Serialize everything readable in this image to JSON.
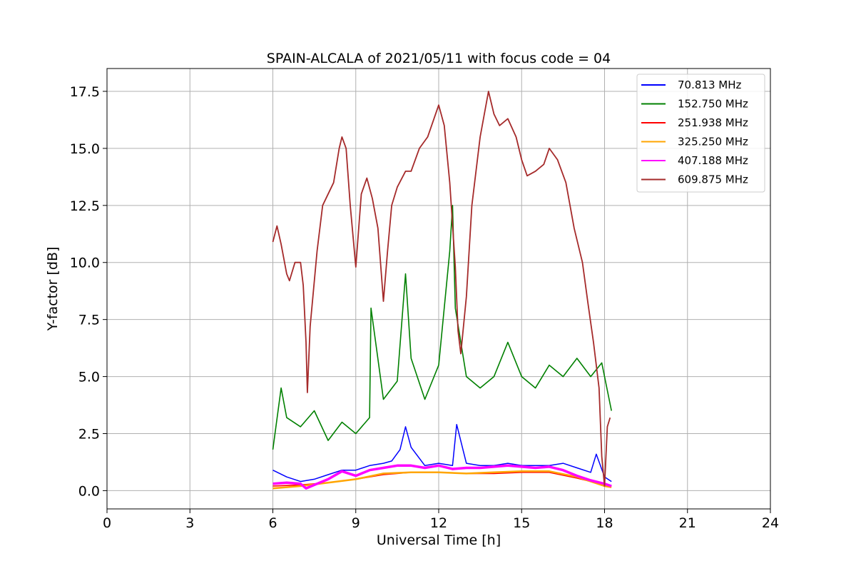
{
  "chart_data": {
    "type": "line",
    "title": "SPAIN-ALCALA of 2021/05/11 with focus code = 04",
    "xlabel": "Universal Time [h]",
    "ylabel": "Y-factor [dB]",
    "xlim": [
      0,
      24
    ],
    "ylim": [
      -0.8,
      18.5
    ],
    "xticks": [
      0,
      3,
      6,
      9,
      12,
      15,
      18,
      21,
      24
    ],
    "xtick_labels": [
      "0",
      "3",
      "6",
      "9",
      "12",
      "15",
      "18",
      "21",
      "24"
    ],
    "yticks": [
      0,
      2.5,
      5,
      7.5,
      10,
      12.5,
      15,
      17.5
    ],
    "ytick_labels": [
      "0.0",
      "2.5",
      "5.0",
      "7.5",
      "10.0",
      "12.5",
      "15.0",
      "17.5"
    ],
    "grid": true,
    "legend_position": "top-right",
    "series": [
      {
        "name": " 70.813 MHz",
        "color": "#0000ff",
        "x": [
          6.0,
          6.5,
          7.0,
          7.5,
          8.0,
          8.5,
          9.0,
          9.5,
          10.0,
          10.3,
          10.6,
          10.8,
          11.0,
          11.5,
          12.0,
          12.5,
          12.65,
          13.0,
          13.5,
          14.0,
          14.5,
          15.0,
          15.5,
          16.0,
          16.5,
          17.0,
          17.5,
          17.7,
          18.0,
          18.25
        ],
        "y": [
          0.9,
          0.6,
          0.4,
          0.5,
          0.7,
          0.9,
          0.9,
          1.1,
          1.2,
          1.3,
          1.8,
          2.8,
          1.9,
          1.1,
          1.2,
          1.1,
          2.9,
          1.2,
          1.1,
          1.1,
          1.2,
          1.1,
          1.1,
          1.1,
          1.2,
          1.0,
          0.8,
          1.6,
          0.6,
          0.4
        ]
      },
      {
        "name": "152.750 MHz",
        "color": "#008000",
        "x": [
          6.0,
          6.3,
          6.5,
          7.0,
          7.5,
          8.0,
          8.5,
          9.0,
          9.5,
          9.55,
          10.0,
          10.5,
          10.8,
          11.0,
          11.5,
          12.0,
          12.4,
          12.5,
          12.6,
          13.0,
          13.5,
          14.0,
          14.5,
          15.0,
          15.5,
          16.0,
          16.5,
          17.0,
          17.5,
          17.9,
          18.25
        ],
        "y": [
          1.8,
          4.5,
          3.2,
          2.8,
          3.5,
          2.2,
          3.0,
          2.5,
          3.2,
          8.0,
          4.0,
          4.8,
          9.5,
          5.8,
          4.0,
          5.5,
          10.5,
          12.5,
          8.0,
          5.0,
          4.5,
          5.0,
          6.5,
          5.0,
          4.5,
          5.5,
          5.0,
          5.8,
          5.0,
          5.6,
          3.5
        ]
      },
      {
        "name": "251.938 MHz",
        "color": "#ff0000",
        "x": [
          6.0,
          7.0,
          8.0,
          9.0,
          10.0,
          11.0,
          12.0,
          13.0,
          14.0,
          15.0,
          16.0,
          17.0,
          18.0,
          18.25
        ],
        "y": [
          0.2,
          0.25,
          0.35,
          0.5,
          0.7,
          0.8,
          0.8,
          0.75,
          0.75,
          0.8,
          0.8,
          0.55,
          0.25,
          0.2
        ]
      },
      {
        "name": "325.250 MHz",
        "color": "#ffa500",
        "x": [
          6.0,
          7.0,
          8.0,
          9.0,
          10.0,
          11.0,
          12.0,
          13.0,
          14.0,
          15.0,
          16.0,
          17.0,
          18.0,
          18.25
        ],
        "y": [
          0.1,
          0.2,
          0.35,
          0.5,
          0.75,
          0.8,
          0.8,
          0.75,
          0.8,
          0.85,
          0.85,
          0.6,
          0.2,
          0.15
        ]
      },
      {
        "name": "407.188 MHz",
        "color": "#ff00ff",
        "x": [
          6.0,
          6.5,
          7.0,
          7.2,
          7.5,
          8.0,
          8.5,
          9.0,
          9.5,
          10.0,
          10.5,
          11.0,
          11.5,
          12.0,
          12.5,
          13.0,
          13.5,
          14.0,
          14.5,
          15.0,
          15.5,
          16.0,
          16.5,
          17.0,
          17.5,
          18.0,
          18.25
        ],
        "y": [
          0.3,
          0.35,
          0.3,
          0.1,
          0.25,
          0.5,
          0.85,
          0.65,
          0.9,
          1.0,
          1.1,
          1.1,
          1.0,
          1.1,
          0.95,
          1.0,
          1.0,
          1.05,
          1.1,
          1.05,
          1.0,
          1.05,
          0.9,
          0.65,
          0.45,
          0.3,
          0.2
        ]
      },
      {
        "name": "609.875 MHz",
        "color": "#a52a2a",
        "x": [
          6.0,
          6.15,
          6.3,
          6.5,
          6.6,
          6.8,
          7.0,
          7.1,
          7.2,
          7.25,
          7.35,
          7.6,
          7.8,
          8.0,
          8.2,
          8.4,
          8.5,
          8.65,
          8.8,
          9.0,
          9.2,
          9.4,
          9.6,
          9.8,
          10.0,
          10.15,
          10.3,
          10.5,
          10.8,
          11.0,
          11.3,
          11.6,
          12.0,
          12.2,
          12.4,
          12.6,
          12.7,
          12.8,
          13.0,
          13.2,
          13.5,
          13.8,
          14.0,
          14.2,
          14.5,
          14.8,
          15.0,
          15.2,
          15.5,
          15.8,
          16.0,
          16.3,
          16.6,
          16.9,
          17.2,
          17.4,
          17.6,
          17.8,
          17.9,
          18.0,
          18.1,
          18.2
        ],
        "y": [
          10.9,
          11.6,
          10.8,
          9.5,
          9.2,
          10.0,
          10.0,
          9.0,
          6.5,
          4.3,
          7.2,
          10.5,
          12.5,
          13.0,
          13.5,
          15.0,
          15.5,
          15.0,
          12.5,
          9.8,
          13.0,
          13.7,
          12.8,
          11.5,
          8.3,
          10.5,
          12.5,
          13.3,
          14.0,
          14.0,
          15.0,
          15.5,
          16.9,
          16.0,
          13.5,
          9.8,
          7.0,
          6.0,
          8.5,
          12.5,
          15.5,
          17.5,
          16.5,
          16.0,
          16.3,
          15.5,
          14.5,
          13.8,
          14.0,
          14.3,
          15.0,
          14.5,
          13.5,
          11.5,
          10.0,
          8.2,
          6.5,
          4.5,
          1.5,
          0.2,
          2.8,
          3.2
        ]
      }
    ]
  }
}
